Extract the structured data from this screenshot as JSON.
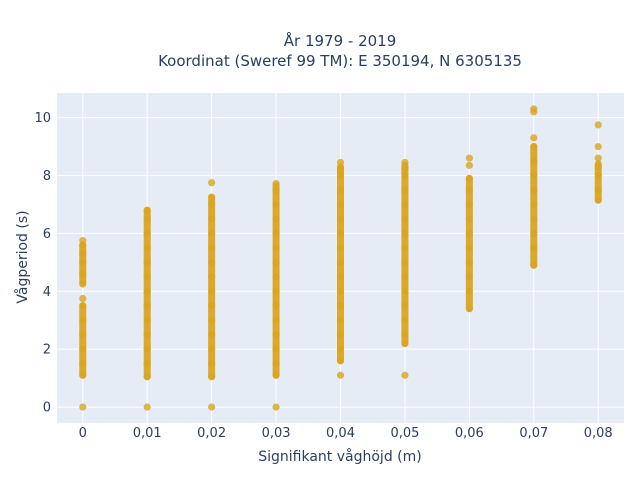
{
  "chart_data": {
    "type": "scatter",
    "title_lines": [
      "År 1979 - 2019",
      "Koordinat (Sweref 99 TM): E 350194, N 6305135"
    ],
    "xlabel": "Signifikant våghöjd (m)",
    "ylabel": "Vågperiod (s)",
    "x_ticks": [
      0,
      0.01,
      0.02,
      0.03,
      0.04,
      0.05,
      0.06,
      0.07,
      0.08
    ],
    "x_tick_labels": [
      "0",
      "0,01",
      "0,02",
      "0,03",
      "0,04",
      "0,05",
      "0,06",
      "0,07",
      "0,08"
    ],
    "y_ticks": [
      0,
      2,
      4,
      6,
      8,
      10
    ],
    "y_tick_labels": [
      "0",
      "2",
      "4",
      "6",
      "8",
      "10"
    ],
    "xlim": [
      -0.004,
      0.084
    ],
    "ylim": [
      -0.55,
      10.85
    ],
    "grid": true,
    "marker_color": "#DAA520",
    "plot_bg": "#E5ECF6",
    "series": [
      {
        "points": [
          [
            0,
            0.0
          ],
          [
            0,
            1.1
          ],
          [
            0,
            1.5
          ],
          [
            0,
            2.0
          ],
          [
            0,
            2.5
          ],
          [
            0,
            3.0
          ],
          [
            0,
            3.5
          ],
          [
            0,
            3.75
          ],
          [
            0,
            4.25
          ],
          [
            0,
            4.6
          ],
          [
            0,
            5.0
          ],
          [
            0,
            5.3
          ],
          [
            0,
            5.6
          ],
          [
            0,
            5.75
          ],
          [
            0.01,
            0.0
          ],
          [
            0.01,
            1.05
          ],
          [
            0.01,
            1.5
          ],
          [
            0.01,
            2.0
          ],
          [
            0.01,
            2.5
          ],
          [
            0.01,
            3.0
          ],
          [
            0.01,
            3.5
          ],
          [
            0.01,
            4.0
          ],
          [
            0.01,
            4.5
          ],
          [
            0.01,
            5.0
          ],
          [
            0.01,
            5.5
          ],
          [
            0.01,
            6.0
          ],
          [
            0.01,
            6.5
          ],
          [
            0.01,
            6.8
          ],
          [
            0.02,
            0.0
          ],
          [
            0.02,
            1.05
          ],
          [
            0.02,
            1.5
          ],
          [
            0.02,
            2.0
          ],
          [
            0.02,
            2.5
          ],
          [
            0.02,
            3.0
          ],
          [
            0.02,
            3.5
          ],
          [
            0.02,
            4.0
          ],
          [
            0.02,
            4.5
          ],
          [
            0.02,
            5.0
          ],
          [
            0.02,
            5.5
          ],
          [
            0.02,
            6.0
          ],
          [
            0.02,
            6.5
          ],
          [
            0.02,
            7.0
          ],
          [
            0.02,
            7.25
          ],
          [
            0.02,
            7.75
          ],
          [
            0.03,
            0.0
          ],
          [
            0.03,
            1.1
          ],
          [
            0.03,
            1.5
          ],
          [
            0.03,
            2.0
          ],
          [
            0.03,
            2.5
          ],
          [
            0.03,
            3.0
          ],
          [
            0.03,
            3.5
          ],
          [
            0.03,
            4.0
          ],
          [
            0.03,
            4.5
          ],
          [
            0.03,
            5.0
          ],
          [
            0.03,
            5.5
          ],
          [
            0.03,
            6.0
          ],
          [
            0.03,
            6.5
          ],
          [
            0.03,
            7.0
          ],
          [
            0.03,
            7.5
          ],
          [
            0.03,
            7.72
          ],
          [
            0.04,
            1.1
          ],
          [
            0.04,
            1.6
          ],
          [
            0.04,
            2.0
          ],
          [
            0.04,
            2.5
          ],
          [
            0.04,
            3.0
          ],
          [
            0.04,
            3.5
          ],
          [
            0.04,
            4.0
          ],
          [
            0.04,
            4.5
          ],
          [
            0.04,
            5.0
          ],
          [
            0.04,
            5.5
          ],
          [
            0.04,
            6.0
          ],
          [
            0.04,
            6.5
          ],
          [
            0.04,
            7.0
          ],
          [
            0.04,
            7.5
          ],
          [
            0.04,
            8.0
          ],
          [
            0.04,
            8.25
          ],
          [
            0.04,
            8.45
          ],
          [
            0.05,
            1.1
          ],
          [
            0.05,
            2.2
          ],
          [
            0.05,
            2.5
          ],
          [
            0.05,
            3.0
          ],
          [
            0.05,
            3.5
          ],
          [
            0.05,
            4.0
          ],
          [
            0.05,
            4.5
          ],
          [
            0.05,
            5.0
          ],
          [
            0.05,
            5.5
          ],
          [
            0.05,
            6.0
          ],
          [
            0.05,
            6.5
          ],
          [
            0.05,
            7.0
          ],
          [
            0.05,
            7.5
          ],
          [
            0.05,
            8.0
          ],
          [
            0.05,
            8.25
          ],
          [
            0.05,
            8.45
          ],
          [
            0.06,
            3.4
          ],
          [
            0.06,
            4.0
          ],
          [
            0.06,
            4.5
          ],
          [
            0.06,
            5.0
          ],
          [
            0.06,
            5.5
          ],
          [
            0.06,
            6.0
          ],
          [
            0.06,
            6.5
          ],
          [
            0.06,
            7.0
          ],
          [
            0.06,
            7.5
          ],
          [
            0.06,
            7.9
          ],
          [
            0.06,
            8.35
          ],
          [
            0.06,
            8.6
          ],
          [
            0.07,
            4.9
          ],
          [
            0.07,
            5.5
          ],
          [
            0.07,
            6.0
          ],
          [
            0.07,
            6.5
          ],
          [
            0.07,
            7.0
          ],
          [
            0.07,
            7.5
          ],
          [
            0.07,
            8.0
          ],
          [
            0.07,
            8.5
          ],
          [
            0.07,
            9.0
          ],
          [
            0.07,
            9.3
          ],
          [
            0.07,
            10.2
          ],
          [
            0.07,
            10.3
          ],
          [
            0.08,
            7.15
          ],
          [
            0.08,
            7.5
          ],
          [
            0.08,
            8.0
          ],
          [
            0.08,
            8.3
          ],
          [
            0.08,
            8.6
          ],
          [
            0.08,
            9.0
          ],
          [
            0.08,
            9.75
          ]
        ],
        "bands": [
          {
            "x": 0,
            "ranges": [
              [
                1.1,
                3.5
              ],
              [
                4.3,
                5.6
              ]
            ]
          },
          {
            "x": 0.01,
            "ranges": [
              [
                1.05,
                6.8
              ]
            ]
          },
          {
            "x": 0.02,
            "ranges": [
              [
                1.05,
                7.25
              ]
            ]
          },
          {
            "x": 0.03,
            "ranges": [
              [
                1.1,
                7.65
              ]
            ]
          },
          {
            "x": 0.04,
            "ranges": [
              [
                1.6,
                8.3
              ]
            ]
          },
          {
            "x": 0.05,
            "ranges": [
              [
                2.2,
                8.35
              ]
            ]
          },
          {
            "x": 0.06,
            "ranges": [
              [
                3.4,
                7.9
              ]
            ]
          },
          {
            "x": 0.07,
            "ranges": [
              [
                4.9,
                9.0
              ]
            ]
          },
          {
            "x": 0.08,
            "ranges": [
              [
                7.15,
                8.4
              ]
            ]
          }
        ]
      }
    ]
  }
}
